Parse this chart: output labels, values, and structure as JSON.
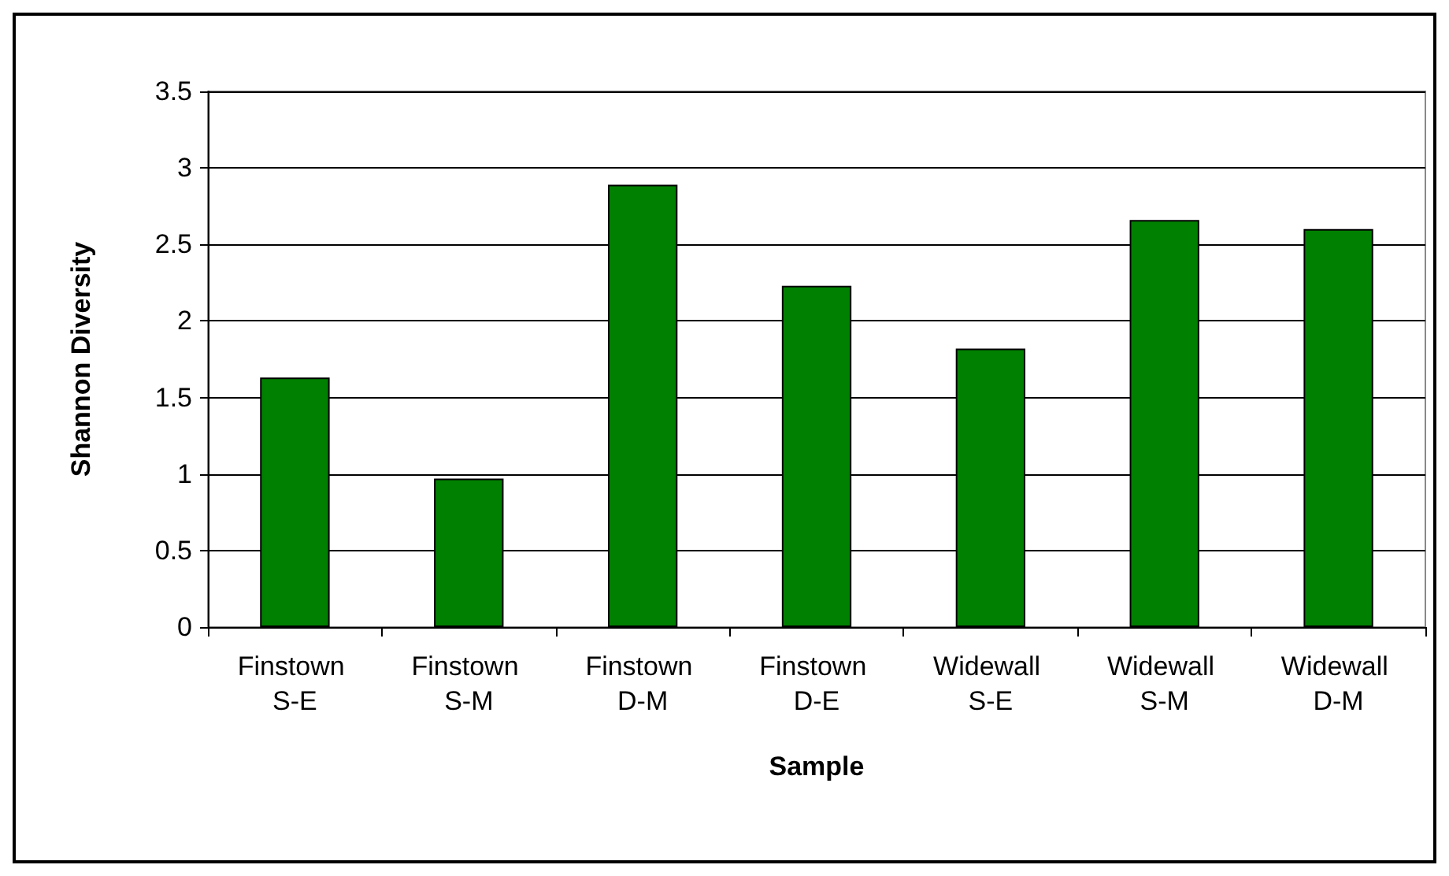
{
  "chart_data": {
    "type": "bar",
    "xlabel": "Sample",
    "ylabel": "Shannon Diversity",
    "categories": [
      "Finstown S-E",
      "Finstown S-M",
      "Finstown D-M",
      "Finstown D-E",
      "Widewall S-E",
      "Widewall S-M",
      "Widewall D-M"
    ],
    "values": [
      1.63,
      0.97,
      2.89,
      2.23,
      1.82,
      2.66,
      2.6
    ],
    "color": "#008000",
    "ylim": [
      0,
      3.5
    ],
    "yticks": [
      0,
      0.5,
      1,
      1.5,
      2,
      2.5,
      3,
      3.5
    ],
    "grid": "y"
  }
}
